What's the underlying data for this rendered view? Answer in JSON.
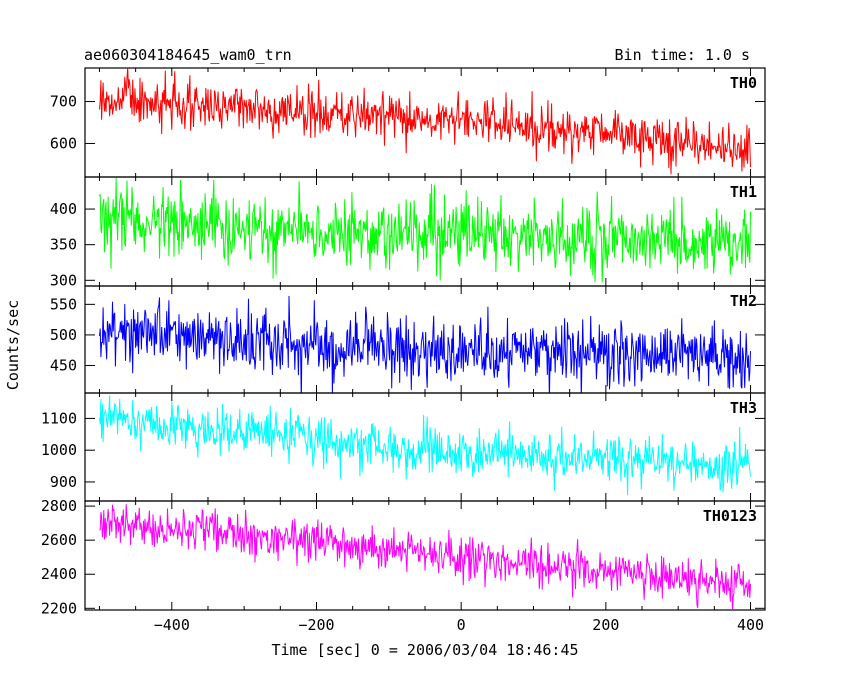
{
  "header": {
    "title": "ae060304184645_wam0_trn",
    "bin_time": "Bin time: 1.0 s"
  },
  "chart_data": {
    "type": "line",
    "xlabel": "Time [sec] 0 = 2006/03/04 18:46:45",
    "ylabel": "Counts/sec",
    "xlim": [
      -520,
      420
    ],
    "x_ticks": [
      "−400",
      "−200",
      "0",
      "200",
      "400"
    ],
    "x_tick_values": [
      -400,
      -200,
      0,
      200,
      400
    ],
    "x_range": [
      -500,
      400
    ],
    "grid": false,
    "series": [
      {
        "name": "TH0",
        "color": "#ff0000",
        "ylim": [
          520,
          780
        ],
        "y_ticks": [
          "600",
          "700"
        ],
        "y_tick_values": [
          600,
          700
        ],
        "trend": [
          [
            -500,
            700
          ],
          [
            -300,
            690
          ],
          [
            -100,
            665
          ],
          [
            100,
            640
          ],
          [
            300,
            610
          ],
          [
            400,
            580
          ]
        ],
        "noise_std": 28
      },
      {
        "name": "TH1",
        "color": "#00ff00",
        "ylim": [
          292,
          445
        ],
        "y_ticks": [
          "300",
          "350",
          "400"
        ],
        "y_tick_values": [
          300,
          350,
          400
        ],
        "trend": [
          [
            -500,
            385
          ],
          [
            -200,
            372
          ],
          [
            0,
            365
          ],
          [
            200,
            358
          ],
          [
            400,
            350
          ]
        ],
        "noise_std": 24
      },
      {
        "name": "TH2",
        "color": "#0000ff",
        "ylim": [
          405,
          580
        ],
        "y_ticks": [
          "450",
          "500",
          "550"
        ],
        "y_tick_values": [
          450,
          500,
          550
        ],
        "trend": [
          [
            -500,
            505
          ],
          [
            -300,
            490
          ],
          [
            -100,
            478
          ],
          [
            100,
            472
          ],
          [
            400,
            468
          ]
        ],
        "noise_std": 26
      },
      {
        "name": "TH3",
        "color": "#00ffff",
        "ylim": [
          840,
          1180
        ],
        "y_ticks": [
          "900",
          "1000",
          "1100"
        ],
        "y_tick_values": [
          900,
          1000,
          1100
        ],
        "trend": [
          [
            -500,
            1100
          ],
          [
            -300,
            1055
          ],
          [
            -100,
            1010
          ],
          [
            100,
            980
          ],
          [
            300,
            960
          ],
          [
            400,
            950
          ]
        ],
        "noise_std": 38
      },
      {
        "name": "TH0123",
        "color": "#ff00ff",
        "ylim": [
          2190,
          2830
        ],
        "y_ticks": [
          "2200",
          "2400",
          "2600",
          "2800"
        ],
        "y_tick_values": [
          2200,
          2400,
          2600,
          2800
        ],
        "trend": [
          [
            -500,
            2710
          ],
          [
            -300,
            2630
          ],
          [
            -100,
            2540
          ],
          [
            100,
            2460
          ],
          [
            300,
            2380
          ],
          [
            400,
            2340
          ]
        ],
        "noise_std": 62
      }
    ]
  }
}
